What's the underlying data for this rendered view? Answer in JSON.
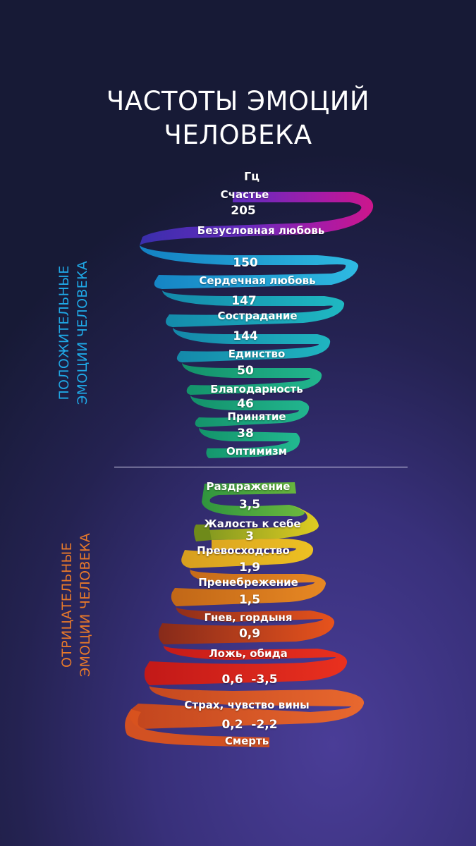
{
  "title": {
    "line1": "ЧАСТОТЫ ЭМОЦИЙ",
    "line2": "ЧЕЛОВЕКА"
  },
  "unit": "Гц",
  "positive": {
    "label_line1": "ПОЛОЖИТЕЛЬНЫЕ",
    "label_line2": "ЭМОЦИИ ЧЕЛОВЕКА",
    "color": "#1fa8e6",
    "items": [
      {
        "emotion": "Счастье",
        "value": ""
      },
      {
        "emotion": "Безусловная любовь",
        "value": "205"
      },
      {
        "emotion": "Сердечная любовь",
        "value": "150"
      },
      {
        "emotion": "Сострадание",
        "value": "147"
      },
      {
        "emotion": "Единство",
        "value": "144"
      },
      {
        "emotion": "Благодарность",
        "value": "50"
      },
      {
        "emotion": "Принятие",
        "value": "46"
      },
      {
        "emotion": "Оптимизм",
        "value": "38"
      }
    ]
  },
  "negative": {
    "label_line1": "ОТРИЦАТЕЛЬНЫЕ",
    "label_line2": "ЭМОЦИИ ЧЕЛОВЕКА",
    "color": "#e8792a",
    "items": [
      {
        "emotion": "Раздражение",
        "value": "3,5"
      },
      {
        "emotion": "Жалость к себе",
        "value": "3"
      },
      {
        "emotion": "Превосходство",
        "value": "1,9"
      },
      {
        "emotion": "Пренебрежение",
        "value": "1,5"
      },
      {
        "emotion": "Гнев, гордыня",
        "value": "0,9"
      },
      {
        "emotion": "Ложь, обида",
        "value": "0,6  -3,5"
      },
      {
        "emotion": "Страх, чувство вины",
        "value": "0,2  -2,2"
      },
      {
        "emotion": "Смерть",
        "value": ""
      }
    ]
  },
  "ribbon_colors": {
    "magenta": "#c2189f",
    "violet": "#4b35c0",
    "cyan": "#1aa6d8",
    "teal": "#16a8a0",
    "green": "#17a86a",
    "olive": "#8fb024",
    "yellow": "#f2c41c",
    "orange": "#e8811c",
    "red": "#e6321a",
    "dark_red": "#a8201a"
  }
}
